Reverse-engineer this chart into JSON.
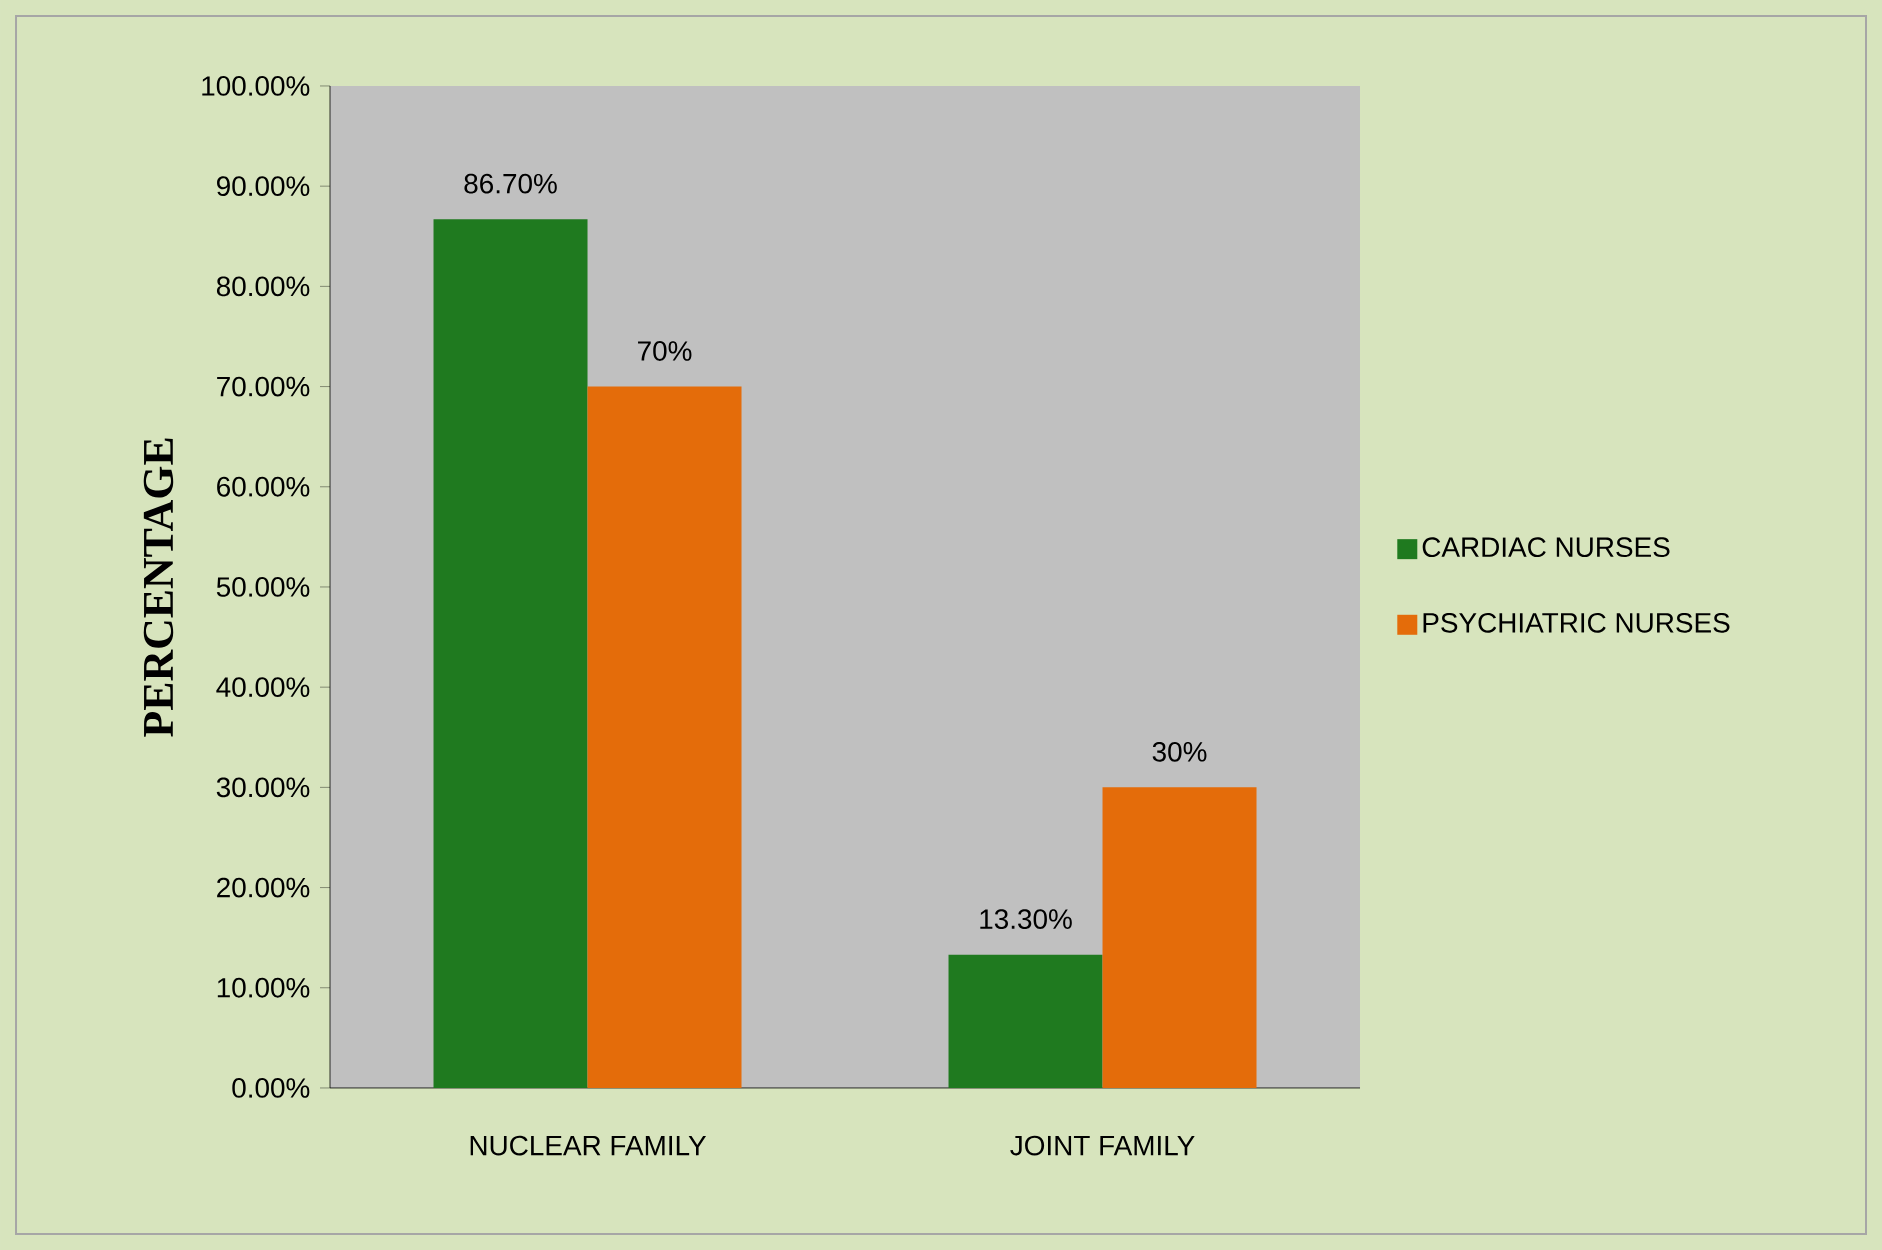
{
  "chart_data": {
    "type": "bar",
    "ylabel": "PERCENTAGE",
    "categories": [
      "NUCLEAR FAMILY",
      "JOINT FAMILY"
    ],
    "series": [
      {
        "name": "CARDIAC NURSES",
        "color": "#1f7a1f",
        "values": [
          86.7,
          13.3
        ],
        "value_labels": [
          "86.70%",
          "13.30%"
        ]
      },
      {
        "name": "PSYCHIATRIC NURSES",
        "color": "#e46c0a",
        "values": [
          70,
          30
        ],
        "value_labels": [
          "70%",
          "30%"
        ]
      }
    ],
    "ylim": [
      0,
      100
    ],
    "yticks": [
      {
        "value": 0,
        "label": "0.00%"
      },
      {
        "value": 10,
        "label": "10.00%"
      },
      {
        "value": 20,
        "label": "20.00%"
      },
      {
        "value": 30,
        "label": "30.00%"
      },
      {
        "value": 40,
        "label": "40.00%"
      },
      {
        "value": 50,
        "label": "50.00%"
      },
      {
        "value": 60,
        "label": "60.00%"
      },
      {
        "value": 70,
        "label": "70.00%"
      },
      {
        "value": 80,
        "label": "80.00%"
      },
      {
        "value": 90,
        "label": "90.00%"
      },
      {
        "value": 100,
        "label": "100.00%"
      }
    ],
    "grid": false,
    "legend": "right"
  }
}
